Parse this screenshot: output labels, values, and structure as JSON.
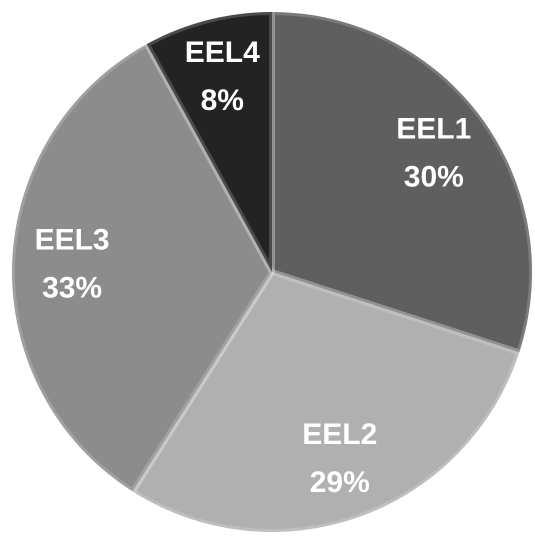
{
  "chart_data": {
    "type": "pie",
    "categories": [
      "EEL1",
      "EEL2",
      "EEL3",
      "EEL4"
    ],
    "values": [
      30,
      29,
      33,
      8
    ],
    "value_labels": [
      "30%",
      "29%",
      "33%",
      "8%"
    ],
    "colors": [
      "#5f5f5f",
      "#b0b0b0",
      "#8c8c8c",
      "#232323"
    ]
  }
}
